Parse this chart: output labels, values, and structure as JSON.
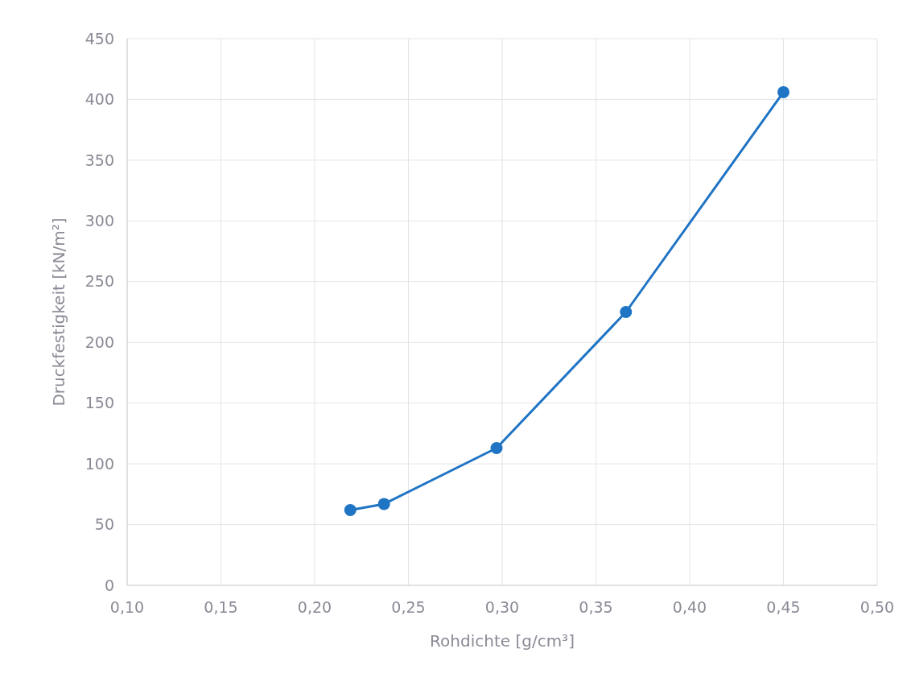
{
  "chart_data": {
    "type": "line",
    "xlabel": "Rohdichte [g/cm³]",
    "ylabel": "Druckfestigkeit [kN/m²]",
    "x": [
      0.219,
      0.237,
      0.297,
      0.366,
      0.45
    ],
    "series": [
      {
        "color": "#1f74c4",
        "values": [
          62,
          67,
          113,
          225,
          406
        ]
      }
    ],
    "xlim": [
      0.1,
      0.5
    ],
    "xticks": [
      {
        "value": 0.1,
        "label": "0,10"
      },
      {
        "value": 0.15,
        "label": "0,15"
      },
      {
        "value": 0.2,
        "label": "0,20"
      },
      {
        "value": 0.25,
        "label": "0,25"
      },
      {
        "value": 0.3,
        "label": "0,30"
      },
      {
        "value": 0.35,
        "label": "0,35"
      },
      {
        "value": 0.4,
        "label": "0,40"
      },
      {
        "value": 0.45,
        "label": "0,45"
      },
      {
        "value": 0.5,
        "label": "0,50"
      }
    ],
    "ylim": [
      0,
      450
    ],
    "yticks": [
      0,
      50,
      100,
      150,
      200,
      250,
      300,
      350,
      400,
      450
    ],
    "grid": true,
    "marker": "circle",
    "line_style": "solid"
  }
}
